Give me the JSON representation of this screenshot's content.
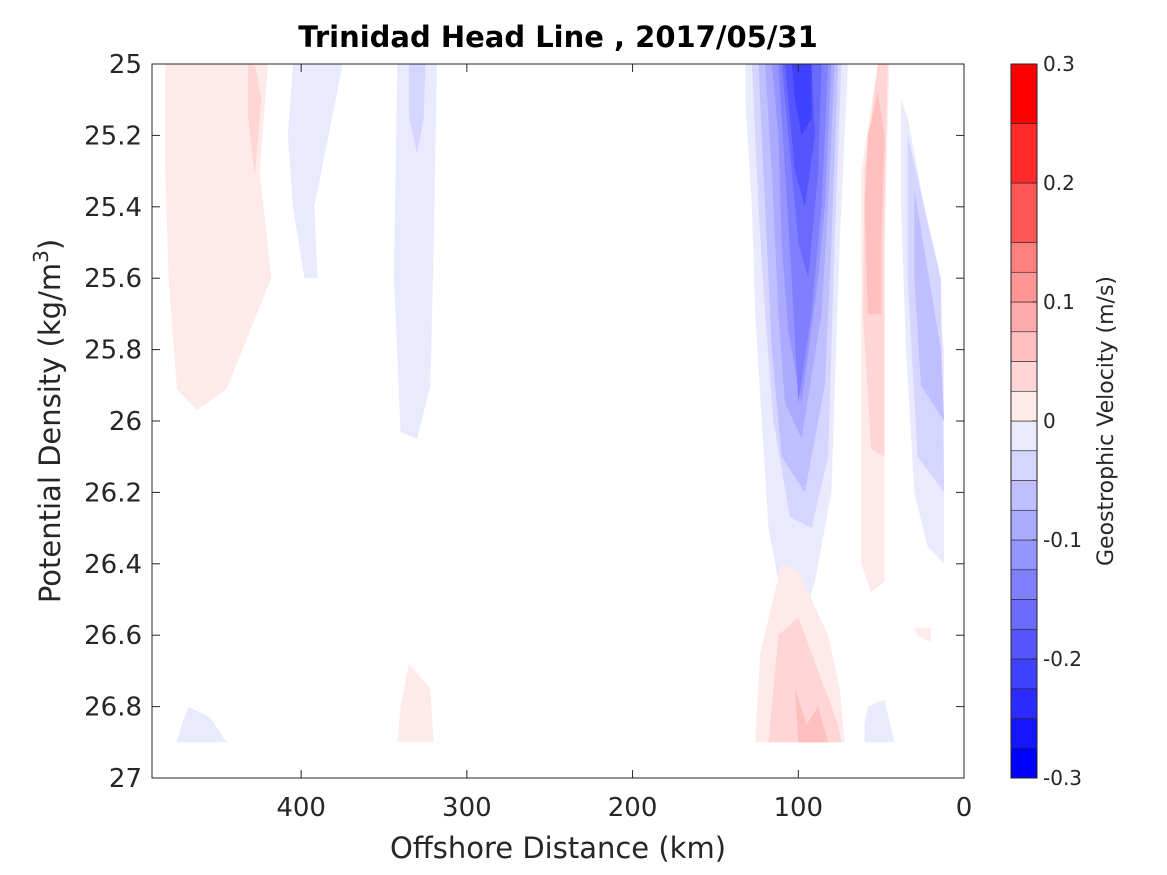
{
  "chart_data": {
    "type": "contour",
    "title": "Trinidad Head Line , 2017/05/31",
    "xlabel": "Offshore Distance (km)",
    "ylabel_main": "Potential Density (kg/m",
    "ylabel_sup": "3",
    "ylabel_close": ")",
    "xlim": [
      490,
      0
    ],
    "ylim": [
      25,
      27
    ],
    "x_reversed": true,
    "y_reversed": true,
    "xticks": [
      400,
      300,
      200,
      100,
      0
    ],
    "xtick_labels": [
      "400",
      "300",
      "200",
      "100",
      "0"
    ],
    "yticks": [
      25,
      25.2,
      25.4,
      25.6,
      25.8,
      26,
      26.2,
      26.4,
      26.6,
      26.8,
      27
    ],
    "ytick_labels": [
      "25",
      "25.2",
      "25.4",
      "25.6",
      "25.8",
      "26",
      "26.2",
      "26.4",
      "26.6",
      "26.8",
      "27"
    ],
    "colorbar": {
      "label": "Geostrophic Velocity (m/s)",
      "limits": [
        -0.3,
        0.3
      ],
      "ticks": [
        -0.3,
        -0.2,
        -0.1,
        0,
        0.1,
        0.2,
        0.3
      ],
      "tick_labels": [
        "-0.3",
        "-0.2",
        "-0.1",
        "0",
        "0.1",
        "0.2",
        "0.3"
      ],
      "levels": [
        -0.3,
        -0.275,
        -0.25,
        -0.225,
        -0.2,
        -0.175,
        -0.15,
        -0.125,
        -0.1,
        -0.075,
        -0.05,
        -0.025,
        0,
        0.025,
        0.05,
        0.075,
        0.1,
        0.125,
        0.15,
        0.2,
        0.25,
        0.3
      ],
      "step": 0.025,
      "neg_color": "#0000ff",
      "pos_color": "#ff0000",
      "zero_color": "#ffffff"
    },
    "regions": [
      {
        "level": 0.025,
        "points": [
          [
            482,
            25
          ],
          [
            420,
            25
          ],
          [
            425,
            25.3
          ],
          [
            418,
            25.6
          ],
          [
            445,
            25.91
          ],
          [
            463,
            25.97
          ],
          [
            475,
            25.91
          ],
          [
            480,
            25.6
          ],
          [
            482,
            25.3
          ]
        ]
      },
      {
        "level": 0.05,
        "points": [
          [
            428,
            25
          ],
          [
            432,
            25
          ],
          [
            432,
            25.15
          ],
          [
            428,
            25.31
          ],
          [
            424,
            25.1
          ]
        ]
      },
      {
        "level": -0.025,
        "points": [
          [
            405,
            25
          ],
          [
            375,
            25
          ],
          [
            392,
            25.4
          ],
          [
            390,
            25.6
          ],
          [
            398,
            25.6
          ],
          [
            405,
            25.4
          ],
          [
            408,
            25.2
          ]
        ]
      },
      {
        "level": -0.025,
        "points": [
          [
            342,
            25
          ],
          [
            318,
            25
          ],
          [
            320,
            25.5
          ],
          [
            322,
            25.9
          ],
          [
            330,
            26.05
          ],
          [
            340,
            26.03
          ],
          [
            344,
            25.6
          ]
        ]
      },
      {
        "level": -0.05,
        "points": [
          [
            335,
            25
          ],
          [
            325,
            25
          ],
          [
            326,
            25.15
          ],
          [
            330,
            25.25
          ],
          [
            335,
            25.15
          ]
        ]
      },
      {
        "level": -0.025,
        "points": [
          [
            132,
            25
          ],
          [
            70,
            25
          ],
          [
            75,
            25.5
          ],
          [
            80,
            26.2
          ],
          [
            90,
            26.45
          ],
          [
            100,
            26.6
          ],
          [
            112,
            26.45
          ],
          [
            118,
            26.3
          ],
          [
            122,
            26
          ],
          [
            126,
            25.7
          ],
          [
            128,
            25.4
          ],
          [
            132,
            25.1
          ]
        ]
      },
      {
        "level": -0.05,
        "points": [
          [
            128,
            25
          ],
          [
            74,
            25
          ],
          [
            78,
            25.5
          ],
          [
            82,
            26.1
          ],
          [
            92,
            26.3
          ],
          [
            105,
            26.27
          ],
          [
            115,
            26
          ],
          [
            120,
            25.7
          ],
          [
            124,
            25.4
          ]
        ]
      },
      {
        "level": -0.075,
        "points": [
          [
            124,
            25
          ],
          [
            76,
            25
          ],
          [
            80,
            25.5
          ],
          [
            84,
            25.9
          ],
          [
            96,
            26.2
          ],
          [
            110,
            26.1
          ],
          [
            116,
            25.8
          ],
          [
            120,
            25.4
          ]
        ]
      },
      {
        "level": -0.1,
        "points": [
          [
            120,
            25
          ],
          [
            78,
            25
          ],
          [
            82,
            25.4
          ],
          [
            86,
            25.7
          ],
          [
            98,
            26.05
          ],
          [
            108,
            25.95
          ],
          [
            112,
            25.7
          ],
          [
            116,
            25.3
          ]
        ]
      },
      {
        "level": -0.125,
        "points": [
          [
            116,
            25
          ],
          [
            80,
            25
          ],
          [
            84,
            25.4
          ],
          [
            88,
            25.6
          ],
          [
            98,
            25.95
          ],
          [
            106,
            25.75
          ],
          [
            110,
            25.5
          ],
          [
            112,
            25.2
          ]
        ]
      },
      {
        "level": -0.15,
        "points": [
          [
            112,
            25
          ],
          [
            82,
            25
          ],
          [
            86,
            25.4
          ],
          [
            92,
            25.7
          ],
          [
            100,
            25.95
          ],
          [
            104,
            25.6
          ],
          [
            108,
            25.3
          ]
        ]
      },
      {
        "level": -0.175,
        "points": [
          [
            110,
            25
          ],
          [
            86,
            25
          ],
          [
            88,
            25.3
          ],
          [
            94,
            25.6
          ],
          [
            100,
            25.5
          ],
          [
            104,
            25.3
          ],
          [
            108,
            25.1
          ]
        ]
      },
      {
        "level": -0.2,
        "points": [
          [
            108,
            25
          ],
          [
            92,
            25
          ],
          [
            90,
            25.2
          ],
          [
            96,
            25.4
          ],
          [
            102,
            25.3
          ],
          [
            106,
            25.1
          ]
        ]
      },
      {
        "level": -0.225,
        "points": [
          [
            104,
            25
          ],
          [
            92,
            25
          ],
          [
            92,
            25.15
          ],
          [
            98,
            25.2
          ],
          [
            102,
            25.1
          ]
        ]
      },
      {
        "level": -0.025,
        "points": [
          [
            38,
            25.1
          ],
          [
            34,
            25.15
          ],
          [
            20,
            25.5
          ],
          [
            12,
            25.8
          ],
          [
            12,
            26.4
          ],
          [
            22,
            26.35
          ],
          [
            30,
            26.2
          ],
          [
            35,
            25.8
          ],
          [
            38,
            25.4
          ]
        ]
      },
      {
        "level": -0.05,
        "points": [
          [
            34,
            25.2
          ],
          [
            14,
            25.6
          ],
          [
            12,
            26.2
          ],
          [
            28,
            26.1
          ],
          [
            34,
            25.6
          ]
        ]
      },
      {
        "level": -0.075,
        "points": [
          [
            30,
            25.35
          ],
          [
            14,
            25.8
          ],
          [
            12,
            26.0
          ],
          [
            26,
            25.9
          ],
          [
            30,
            25.6
          ]
        ]
      },
      {
        "level": 0.025,
        "points": [
          [
            52,
            25
          ],
          [
            45,
            25
          ],
          [
            48,
            25.5
          ],
          [
            48,
            26.45
          ],
          [
            56,
            26.48
          ],
          [
            62,
            26.4
          ],
          [
            62,
            25.3
          ]
        ]
      },
      {
        "level": 0.05,
        "points": [
          [
            52,
            25
          ],
          [
            46,
            25
          ],
          [
            48,
            25.4
          ],
          [
            48,
            26.1
          ],
          [
            56,
            26.08
          ],
          [
            61,
            25.7
          ],
          [
            60,
            25.3
          ]
        ]
      },
      {
        "level": 0.075,
        "points": [
          [
            52,
            25.08
          ],
          [
            48,
            25.2
          ],
          [
            50,
            25.5
          ],
          [
            50,
            25.7
          ],
          [
            58,
            25.7
          ],
          [
            60,
            25.4
          ],
          [
            58,
            25.2
          ]
        ]
      },
      {
        "level": 0.025,
        "points": [
          [
            126,
            26.9
          ],
          [
            123,
            26.65
          ],
          [
            110,
            26.4
          ],
          [
            100,
            26.42
          ],
          [
            82,
            26.6
          ],
          [
            75,
            26.75
          ],
          [
            72,
            26.9
          ]
        ]
      },
      {
        "level": 0.05,
        "points": [
          [
            118,
            26.9
          ],
          [
            112,
            26.6
          ],
          [
            100,
            26.55
          ],
          [
            88,
            26.7
          ],
          [
            76,
            26.85
          ],
          [
            74,
            26.9
          ]
        ]
      },
      {
        "level": 0.075,
        "points": [
          [
            100,
            26.9
          ],
          [
            102,
            26.75
          ],
          [
            95,
            26.85
          ],
          [
            88,
            26.8
          ],
          [
            82,
            26.9
          ]
        ]
      },
      {
        "level": 0.025,
        "points": [
          [
            342,
            26.9
          ],
          [
            320,
            26.9
          ],
          [
            322,
            26.75
          ],
          [
            335,
            26.68
          ],
          [
            340,
            26.8
          ]
        ]
      },
      {
        "level": -0.025,
        "points": [
          [
            475,
            26.9
          ],
          [
            445,
            26.9
          ],
          [
            455,
            26.83
          ],
          [
            468,
            26.8
          ],
          [
            472,
            26.85
          ]
        ]
      },
      {
        "level": -0.025,
        "points": [
          [
            60,
            26.9
          ],
          [
            42,
            26.9
          ],
          [
            48,
            26.78
          ],
          [
            58,
            26.8
          ],
          [
            60,
            26.85
          ]
        ]
      },
      {
        "level": 0.025,
        "points": [
          [
            30,
            26.58
          ],
          [
            20,
            26.58
          ],
          [
            20,
            26.62
          ],
          [
            28,
            26.6
          ]
        ]
      }
    ]
  }
}
